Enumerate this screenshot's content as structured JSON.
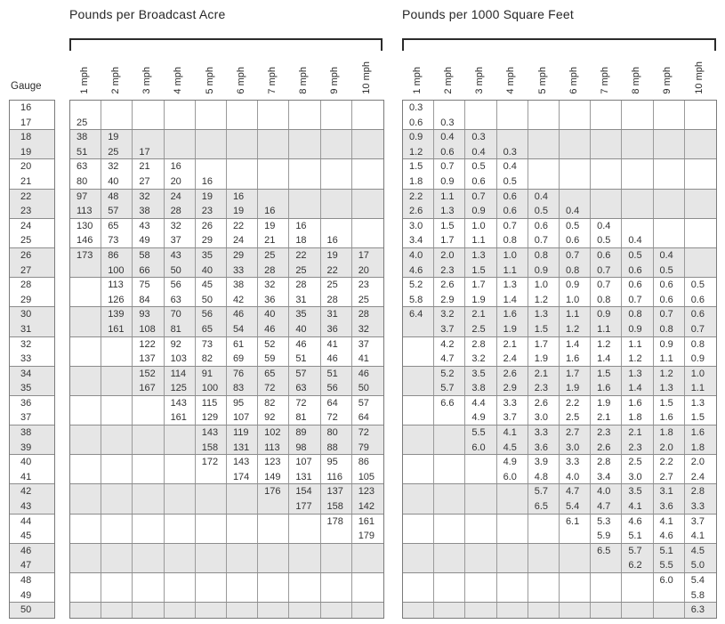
{
  "gauge_label": "Gauge",
  "columns": [
    "1 mph",
    "2 mph",
    "3 mph",
    "4 mph",
    "5 mph",
    "6 mph",
    "7 mph",
    "8 mph",
    "9 mph",
    "10 mph"
  ],
  "left_table": {
    "title": "Pounds per Broadcast Acre"
  },
  "right_table": {
    "title": "Pounds per 1000 Square Feet"
  },
  "colors": {
    "row_shade": "#e6e6e6",
    "grid_line": "#9a9a9a",
    "outer_border": "#7a7a7a",
    "text": "#333333"
  },
  "rows": [
    {
      "gauge": "16",
      "acre": [
        "",
        "",
        "",
        "",
        "",
        "",
        "",
        "",
        "",
        ""
      ],
      "sqft": [
        "0.3",
        "",
        "",
        "",
        "",
        "",
        "",
        "",
        "",
        ""
      ]
    },
    {
      "gauge": "17",
      "acre": [
        "25",
        "",
        "",
        "",
        "",
        "",
        "",
        "",
        "",
        ""
      ],
      "sqft": [
        "0.6",
        "0.3",
        "",
        "",
        "",
        "",
        "",
        "",
        "",
        ""
      ]
    },
    {
      "gauge": "18",
      "acre": [
        "38",
        "19",
        "",
        "",
        "",
        "",
        "",
        "",
        "",
        ""
      ],
      "sqft": [
        "0.9",
        "0.4",
        "0.3",
        "",
        "",
        "",
        "",
        "",
        "",
        ""
      ]
    },
    {
      "gauge": "19",
      "acre": [
        "51",
        "25",
        "17",
        "",
        "",
        "",
        "",
        "",
        "",
        ""
      ],
      "sqft": [
        "1.2",
        "0.6",
        "0.4",
        "0.3",
        "",
        "",
        "",
        "",
        "",
        ""
      ]
    },
    {
      "gauge": "20",
      "acre": [
        "63",
        "32",
        "21",
        "16",
        "",
        "",
        "",
        "",
        "",
        ""
      ],
      "sqft": [
        "1.5",
        "0.7",
        "0.5",
        "0.4",
        "",
        "",
        "",
        "",
        "",
        ""
      ]
    },
    {
      "gauge": "21",
      "acre": [
        "80",
        "40",
        "27",
        "20",
        "16",
        "",
        "",
        "",
        "",
        ""
      ],
      "sqft": [
        "1.8",
        "0.9",
        "0.6",
        "0.5",
        "",
        "",
        "",
        "",
        "",
        ""
      ]
    },
    {
      "gauge": "22",
      "acre": [
        "97",
        "48",
        "32",
        "24",
        "19",
        "16",
        "",
        "",
        "",
        ""
      ],
      "sqft": [
        "2.2",
        "1.1",
        "0.7",
        "0.6",
        "0.4",
        "",
        "",
        "",
        "",
        ""
      ]
    },
    {
      "gauge": "23",
      "acre": [
        "113",
        "57",
        "38",
        "28",
        "23",
        "19",
        "16",
        "",
        "",
        ""
      ],
      "sqft": [
        "2.6",
        "1.3",
        "0.9",
        "0.6",
        "0.5",
        "0.4",
        "",
        "",
        "",
        ""
      ]
    },
    {
      "gauge": "24",
      "acre": [
        "130",
        "65",
        "43",
        "32",
        "26",
        "22",
        "19",
        "16",
        "",
        ""
      ],
      "sqft": [
        "3.0",
        "1.5",
        "1.0",
        "0.7",
        "0.6",
        "0.5",
        "0.4",
        "",
        "",
        ""
      ]
    },
    {
      "gauge": "25",
      "acre": [
        "146",
        "73",
        "49",
        "37",
        "29",
        "24",
        "21",
        "18",
        "16",
        ""
      ],
      "sqft": [
        "3.4",
        "1.7",
        "1.1",
        "0.8",
        "0.7",
        "0.6",
        "0.5",
        "0.4",
        "",
        ""
      ]
    },
    {
      "gauge": "26",
      "acre": [
        "173",
        "86",
        "58",
        "43",
        "35",
        "29",
        "25",
        "22",
        "19",
        "17"
      ],
      "sqft": [
        "4.0",
        "2.0",
        "1.3",
        "1.0",
        "0.8",
        "0.7",
        "0.6",
        "0.5",
        "0.4",
        ""
      ]
    },
    {
      "gauge": "27",
      "acre": [
        "",
        "100",
        "66",
        "50",
        "40",
        "33",
        "28",
        "25",
        "22",
        "20"
      ],
      "sqft": [
        "4.6",
        "2.3",
        "1.5",
        "1.1",
        "0.9",
        "0.8",
        "0.7",
        "0.6",
        "0.5",
        ""
      ]
    },
    {
      "gauge": "28",
      "acre": [
        "",
        "113",
        "75",
        "56",
        "45",
        "38",
        "32",
        "28",
        "25",
        "23"
      ],
      "sqft": [
        "5.2",
        "2.6",
        "1.7",
        "1.3",
        "1.0",
        "0.9",
        "0.7",
        "0.6",
        "0.6",
        "0.5"
      ]
    },
    {
      "gauge": "29",
      "acre": [
        "",
        "126",
        "84",
        "63",
        "50",
        "42",
        "36",
        "31",
        "28",
        "25"
      ],
      "sqft": [
        "5.8",
        "2.9",
        "1.9",
        "1.4",
        "1.2",
        "1.0",
        "0.8",
        "0.7",
        "0.6",
        "0.6"
      ]
    },
    {
      "gauge": "30",
      "acre": [
        "",
        "139",
        "93",
        "70",
        "56",
        "46",
        "40",
        "35",
        "31",
        "28"
      ],
      "sqft": [
        "6.4",
        "3.2",
        "2.1",
        "1.6",
        "1.3",
        "1.1",
        "0.9",
        "0.8",
        "0.7",
        "0.6"
      ]
    },
    {
      "gauge": "31",
      "acre": [
        "",
        "161",
        "108",
        "81",
        "65",
        "54",
        "46",
        "40",
        "36",
        "32"
      ],
      "sqft": [
        "",
        "3.7",
        "2.5",
        "1.9",
        "1.5",
        "1.2",
        "1.1",
        "0.9",
        "0.8",
        "0.7"
      ]
    },
    {
      "gauge": "32",
      "acre": [
        "",
        "",
        "122",
        "92",
        "73",
        "61",
        "52",
        "46",
        "41",
        "37"
      ],
      "sqft": [
        "",
        "4.2",
        "2.8",
        "2.1",
        "1.7",
        "1.4",
        "1.2",
        "1.1",
        "0.9",
        "0.8"
      ]
    },
    {
      "gauge": "33",
      "acre": [
        "",
        "",
        "137",
        "103",
        "82",
        "69",
        "59",
        "51",
        "46",
        "41"
      ],
      "sqft": [
        "",
        "4.7",
        "3.2",
        "2.4",
        "1.9",
        "1.6",
        "1.4",
        "1.2",
        "1.1",
        "0.9"
      ]
    },
    {
      "gauge": "34",
      "acre": [
        "",
        "",
        "152",
        "114",
        "91",
        "76",
        "65",
        "57",
        "51",
        "46"
      ],
      "sqft": [
        "",
        "5.2",
        "3.5",
        "2.6",
        "2.1",
        "1.7",
        "1.5",
        "1.3",
        "1.2",
        "1.0"
      ]
    },
    {
      "gauge": "35",
      "acre": [
        "",
        "",
        "167",
        "125",
        "100",
        "83",
        "72",
        "63",
        "56",
        "50"
      ],
      "sqft": [
        "",
        "5.7",
        "3.8",
        "2.9",
        "2.3",
        "1.9",
        "1.6",
        "1.4",
        "1.3",
        "1.1"
      ]
    },
    {
      "gauge": "36",
      "acre": [
        "",
        "",
        "",
        "143",
        "115",
        "95",
        "82",
        "72",
        "64",
        "57"
      ],
      "sqft": [
        "",
        "6.6",
        "4.4",
        "3.3",
        "2.6",
        "2.2",
        "1.9",
        "1.6",
        "1.5",
        "1.3"
      ]
    },
    {
      "gauge": "37",
      "acre": [
        "",
        "",
        "",
        "161",
        "129",
        "107",
        "92",
        "81",
        "72",
        "64"
      ],
      "sqft": [
        "",
        "",
        "4.9",
        "3.7",
        "3.0",
        "2.5",
        "2.1",
        "1.8",
        "1.6",
        "1.5"
      ]
    },
    {
      "gauge": "38",
      "acre": [
        "",
        "",
        "",
        "",
        "143",
        "119",
        "102",
        "89",
        "80",
        "72"
      ],
      "sqft": [
        "",
        "",
        "5.5",
        "4.1",
        "3.3",
        "2.7",
        "2.3",
        "2.1",
        "1.8",
        "1.6"
      ]
    },
    {
      "gauge": "39",
      "acre": [
        "",
        "",
        "",
        "",
        "158",
        "131",
        "113",
        "98",
        "88",
        "79"
      ],
      "sqft": [
        "",
        "",
        "6.0",
        "4.5",
        "3.6",
        "3.0",
        "2.6",
        "2.3",
        "2.0",
        "1.8"
      ]
    },
    {
      "gauge": "40",
      "acre": [
        "",
        "",
        "",
        "",
        "172",
        "143",
        "123",
        "107",
        "95",
        "86"
      ],
      "sqft": [
        "",
        "",
        "",
        "4.9",
        "3.9",
        "3.3",
        "2.8",
        "2.5",
        "2.2",
        "2.0"
      ]
    },
    {
      "gauge": "41",
      "acre": [
        "",
        "",
        "",
        "",
        "",
        "174",
        "149",
        "131",
        "116",
        "105"
      ],
      "sqft": [
        "",
        "",
        "",
        "6.0",
        "4.8",
        "4.0",
        "3.4",
        "3.0",
        "2.7",
        "2.4"
      ]
    },
    {
      "gauge": "42",
      "acre": [
        "",
        "",
        "",
        "",
        "",
        "",
        "176",
        "154",
        "137",
        "123"
      ],
      "sqft": [
        "",
        "",
        "",
        "",
        "5.7",
        "4.7",
        "4.0",
        "3.5",
        "3.1",
        "2.8"
      ]
    },
    {
      "gauge": "43",
      "acre": [
        "",
        "",
        "",
        "",
        "",
        "",
        "",
        "177",
        "158",
        "142"
      ],
      "sqft": [
        "",
        "",
        "",
        "",
        "6.5",
        "5.4",
        "4.7",
        "4.1",
        "3.6",
        "3.3"
      ]
    },
    {
      "gauge": "44",
      "acre": [
        "",
        "",
        "",
        "",
        "",
        "",
        "",
        "",
        "178",
        "161"
      ],
      "sqft": [
        "",
        "",
        "",
        "",
        "",
        "6.1",
        "5.3",
        "4.6",
        "4.1",
        "3.7"
      ]
    },
    {
      "gauge": "45",
      "acre": [
        "",
        "",
        "",
        "",
        "",
        "",
        "",
        "",
        "",
        "179"
      ],
      "sqft": [
        "",
        "",
        "",
        "",
        "",
        "",
        "5.9",
        "5.1",
        "4.6",
        "4.1"
      ]
    },
    {
      "gauge": "46",
      "acre": [
        "",
        "",
        "",
        "",
        "",
        "",
        "",
        "",
        "",
        ""
      ],
      "sqft": [
        "",
        "",
        "",
        "",
        "",
        "",
        "6.5",
        "5.7",
        "5.1",
        "4.5"
      ]
    },
    {
      "gauge": "47",
      "acre": [
        "",
        "",
        "",
        "",
        "",
        "",
        "",
        "",
        "",
        ""
      ],
      "sqft": [
        "",
        "",
        "",
        "",
        "",
        "",
        "",
        "6.2",
        "5.5",
        "5.0"
      ]
    },
    {
      "gauge": "48",
      "acre": [
        "",
        "",
        "",
        "",
        "",
        "",
        "",
        "",
        "",
        ""
      ],
      "sqft": [
        "",
        "",
        "",
        "",
        "",
        "",
        "",
        "",
        "6.0",
        "5.4"
      ]
    },
    {
      "gauge": "49",
      "acre": [
        "",
        "",
        "",
        "",
        "",
        "",
        "",
        "",
        "",
        ""
      ],
      "sqft": [
        "",
        "",
        "",
        "",
        "",
        "",
        "",
        "",
        "",
        "5.8"
      ]
    },
    {
      "gauge": "50",
      "acre": [
        "",
        "",
        "",
        "",
        "",
        "",
        "",
        "",
        "",
        ""
      ],
      "sqft": [
        "",
        "",
        "",
        "",
        "",
        "",
        "",
        "",
        "",
        "6.3"
      ]
    }
  ]
}
